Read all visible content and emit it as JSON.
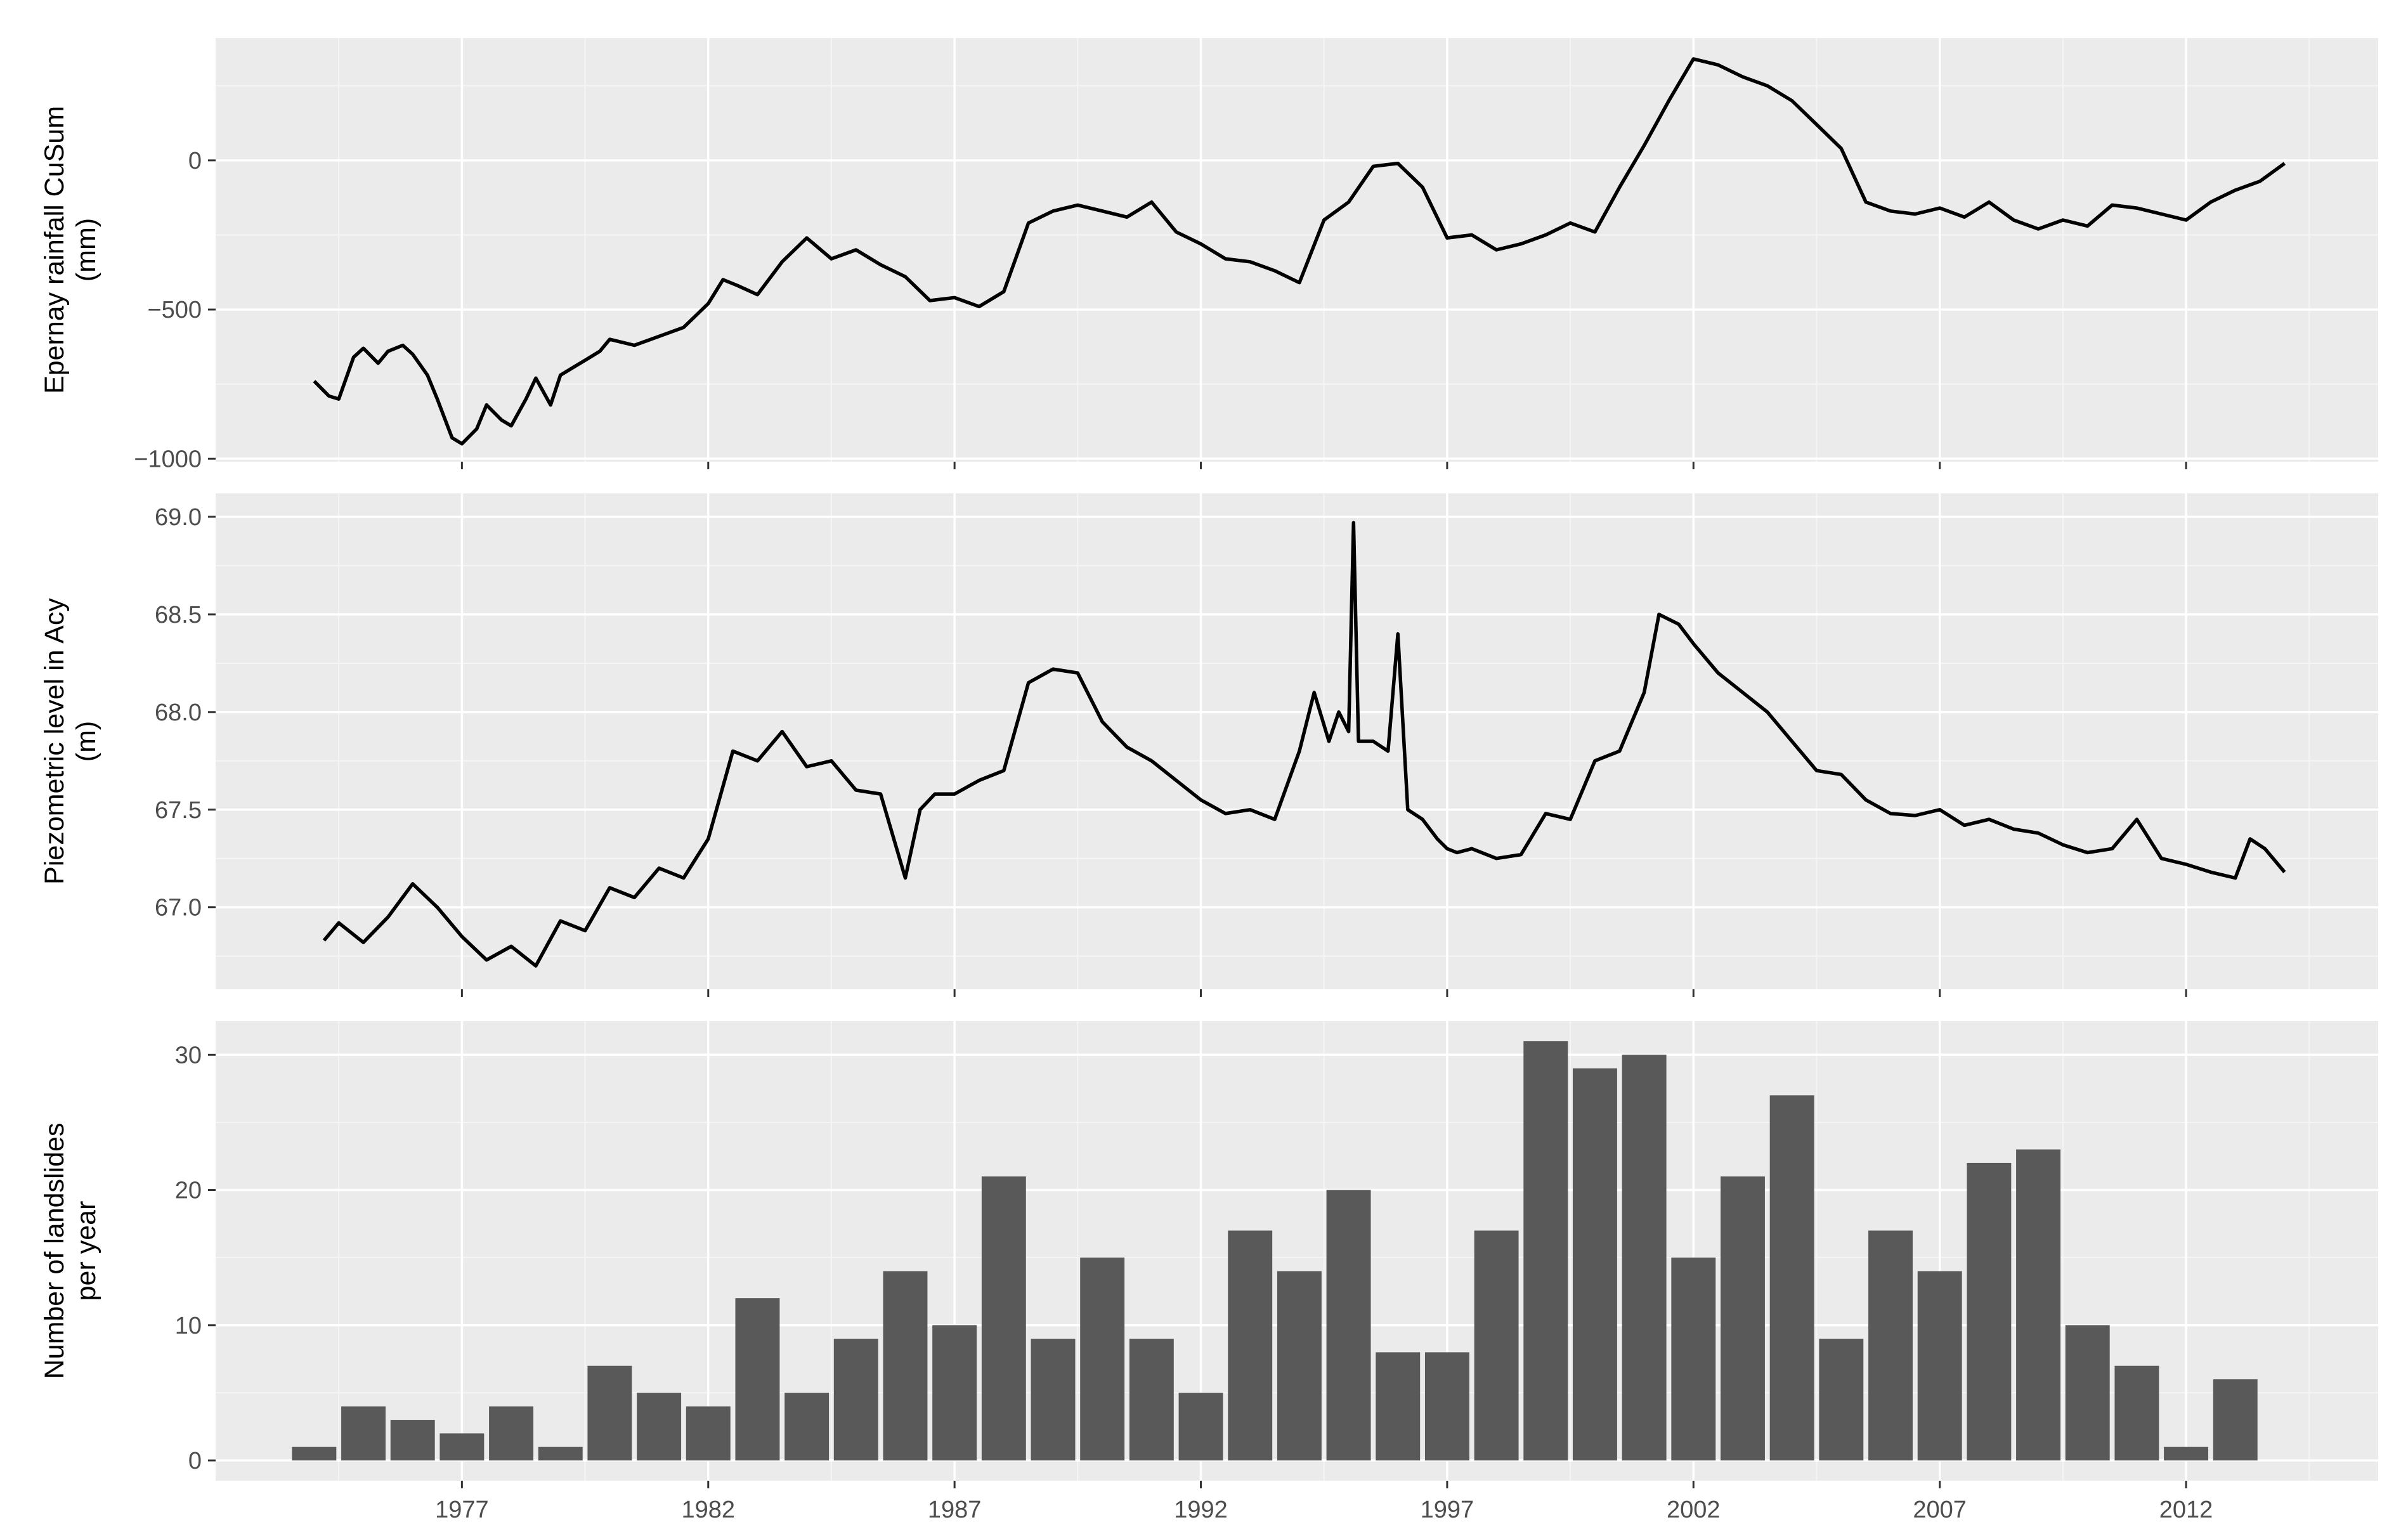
{
  "colors": {
    "panel_background": "#ebebeb",
    "grid_major": "#ffffff",
    "grid_minor": "#f5f5f5",
    "line": "#000000",
    "bar_fill": "#595959",
    "tick_label": "#4d4d4d"
  },
  "chart_data": [
    {
      "type": "line",
      "ylabel": [
        "Epernay rainfall CuSum",
        "(mm)"
      ],
      "xlabel": "",
      "xlim": [
        1972.0,
        2015.9
      ],
      "ylim": [
        -1010,
        410
      ],
      "yticks": [
        0,
        -500,
        -1000
      ],
      "ytick_labels": [
        "0",
        "−500",
        "−1000"
      ],
      "grid": true,
      "series": [
        {
          "values_note_free": true,
          "x": [
            1974.0,
            1974.3,
            1974.5,
            1974.8,
            1975.0,
            1975.3,
            1975.5,
            1975.8,
            1976.0,
            1976.3,
            1976.5,
            1976.8,
            1977.0,
            1977.3,
            1977.5,
            1977.8,
            1978.0,
            1978.3,
            1978.5,
            1978.8,
            1979.0,
            1979.3,
            1979.5,
            1979.8,
            1980.0,
            1980.5,
            1981.0,
            1981.5,
            1982.0,
            1982.3,
            1982.6,
            1983.0,
            1983.5,
            1984.0,
            1984.5,
            1985.0,
            1985.5,
            1986.0,
            1986.5,
            1987.0,
            1987.5,
            1988.0,
            1988.5,
            1989.0,
            1989.5,
            1990.0,
            1990.5,
            1991.0,
            1991.5,
            1992.0,
            1992.5,
            1993.0,
            1993.5,
            1994.0,
            1994.5,
            1995.0,
            1995.5,
            1996.0,
            1996.5,
            1997.0,
            1997.5,
            1998.0,
            1998.5,
            1999.0,
            1999.5,
            2000.0,
            2000.5,
            2001.0,
            2001.5,
            2002.0,
            2002.5,
            2003.0,
            2003.5,
            2004.0,
            2004.5,
            2005.0,
            2005.5,
            2006.0,
            2006.5,
            2007.0,
            2007.5,
            2008.0,
            2008.5,
            2009.0,
            2009.5,
            2010.0,
            2010.5,
            2011.0,
            2011.5,
            2012.0,
            2012.5,
            2013.0,
            2013.5,
            2014.0
          ],
          "y": [
            -740,
            -790,
            -800,
            -660,
            -630,
            -680,
            -640,
            -620,
            -650,
            -720,
            -800,
            -930,
            -950,
            -900,
            -820,
            -870,
            -890,
            -800,
            -730,
            -820,
            -720,
            -690,
            -670,
            -640,
            -600,
            -620,
            -590,
            -560,
            -480,
            -400,
            -420,
            -450,
            -340,
            -260,
            -330,
            -300,
            -350,
            -390,
            -470,
            -460,
            -490,
            -440,
            -210,
            -170,
            -150,
            -170,
            -190,
            -140,
            -240,
            -280,
            -330,
            -340,
            -370,
            -410,
            -200,
            -140,
            -20,
            -10,
            -90,
            -260,
            -250,
            -300,
            -280,
            -250,
            -210,
            -240,
            -90,
            50,
            200,
            340,
            320,
            280,
            250,
            200,
            120,
            40,
            -140,
            -170,
            -180,
            -160,
            -190,
            -140,
            -200,
            -230,
            -200,
            -220,
            -150,
            -160,
            -180,
            -200,
            -140,
            -100,
            -70,
            -10
          ]
        }
      ]
    },
    {
      "type": "line",
      "ylabel": [
        "Piezometric level in Acy",
        "(m)"
      ],
      "xlabel": "",
      "xlim": [
        1972.0,
        2015.9
      ],
      "ylim": [
        66.58,
        69.12
      ],
      "yticks": [
        67.0,
        67.5,
        68.0,
        68.5,
        69.0
      ],
      "ytick_labels": [
        "67.0",
        "67.5",
        "68.0",
        "68.5",
        "69.0"
      ],
      "grid": true,
      "series": [
        {
          "x": [
            1974.2,
            1974.5,
            1975.0,
            1975.5,
            1976.0,
            1976.5,
            1977.0,
            1977.5,
            1978.0,
            1978.5,
            1979.0,
            1979.5,
            1980.0,
            1980.5,
            1981.0,
            1981.5,
            1982.0,
            1982.5,
            1983.0,
            1983.5,
            1984.0,
            1984.5,
            1985.0,
            1985.5,
            1986.0,
            1986.3,
            1986.6,
            1987.0,
            1987.5,
            1988.0,
            1988.5,
            1989.0,
            1989.5,
            1990.0,
            1990.5,
            1991.0,
            1991.5,
            1992.0,
            1992.5,
            1993.0,
            1993.5,
            1994.0,
            1994.3,
            1994.6,
            1994.8,
            1995.0,
            1995.1,
            1995.2,
            1995.5,
            1995.8,
            1996.0,
            1996.2,
            1996.5,
            1996.8,
            1997.0,
            1997.2,
            1997.5,
            1998.0,
            1998.5,
            1999.0,
            1999.5,
            2000.0,
            2000.5,
            2001.0,
            2001.3,
            2001.7,
            2002.0,
            2002.5,
            2003.0,
            2003.5,
            2004.0,
            2004.5,
            2005.0,
            2005.5,
            2006.0,
            2006.5,
            2007.0,
            2007.5,
            2008.0,
            2008.5,
            2009.0,
            2009.5,
            2010.0,
            2010.5,
            2011.0,
            2011.5,
            2012.0,
            2012.5,
            2013.0,
            2013.3,
            2013.6,
            2014.0
          ],
          "y": [
            66.83,
            66.92,
            66.82,
            66.95,
            67.12,
            67.0,
            66.85,
            66.73,
            66.8,
            66.7,
            66.93,
            66.88,
            67.1,
            67.05,
            67.2,
            67.15,
            67.35,
            67.8,
            67.75,
            67.9,
            67.72,
            67.75,
            67.6,
            67.58,
            67.15,
            67.5,
            67.58,
            67.58,
            67.65,
            67.7,
            68.15,
            68.22,
            68.2,
            67.95,
            67.82,
            67.75,
            67.65,
            67.55,
            67.48,
            67.5,
            67.45,
            67.8,
            68.1,
            67.85,
            68.0,
            67.9,
            68.97,
            67.85,
            67.85,
            67.8,
            68.4,
            67.5,
            67.45,
            67.35,
            67.3,
            67.28,
            67.3,
            67.25,
            67.27,
            67.48,
            67.45,
            67.75,
            67.8,
            68.1,
            68.5,
            68.45,
            68.35,
            68.2,
            68.1,
            68.0,
            67.85,
            67.7,
            67.68,
            67.55,
            67.48,
            67.47,
            67.5,
            67.42,
            67.45,
            67.4,
            67.38,
            67.32,
            67.28,
            67.3,
            67.45,
            67.25,
            67.22,
            67.18,
            67.15,
            67.35,
            67.3,
            67.18
          ]
        }
      ]
    },
    {
      "type": "bar",
      "ylabel": [
        "Number of landslides",
        "per year"
      ],
      "xlabel": "",
      "xlim": [
        1972.0,
        2015.9
      ],
      "ylim": [
        -1.5,
        32.5
      ],
      "yticks": [
        0,
        10,
        20,
        30
      ],
      "ytick_labels": [
        "0",
        "10",
        "20",
        "30"
      ],
      "xticks": [
        1977,
        1982,
        1987,
        1992,
        1997,
        2002,
        2007,
        2012
      ],
      "xtick_labels": [
        "1977",
        "1982",
        "1987",
        "1992",
        "1997",
        "2002",
        "2007",
        "2012"
      ],
      "grid": true,
      "categories": [
        1974,
        1975,
        1976,
        1977,
        1978,
        1979,
        1980,
        1981,
        1982,
        1983,
        1984,
        1985,
        1986,
        1987,
        1988,
        1989,
        1990,
        1991,
        1992,
        1993,
        1994,
        1995,
        1996,
        1997,
        1998,
        1999,
        2000,
        2001,
        2002,
        2003,
        2004,
        2005,
        2006,
        2007,
        2008,
        2009,
        2010,
        2011,
        2012,
        2013,
        2014
      ],
      "values": [
        1,
        4,
        3,
        2,
        4,
        1,
        7,
        5,
        4,
        12,
        5,
        9,
        14,
        10,
        21,
        9,
        15,
        9,
        5,
        17,
        14,
        20,
        8,
        8,
        17,
        31,
        29,
        30,
        15,
        21,
        27,
        9,
        17,
        14,
        22,
        23,
        10,
        7,
        1,
        6,
        0
      ]
    }
  ]
}
